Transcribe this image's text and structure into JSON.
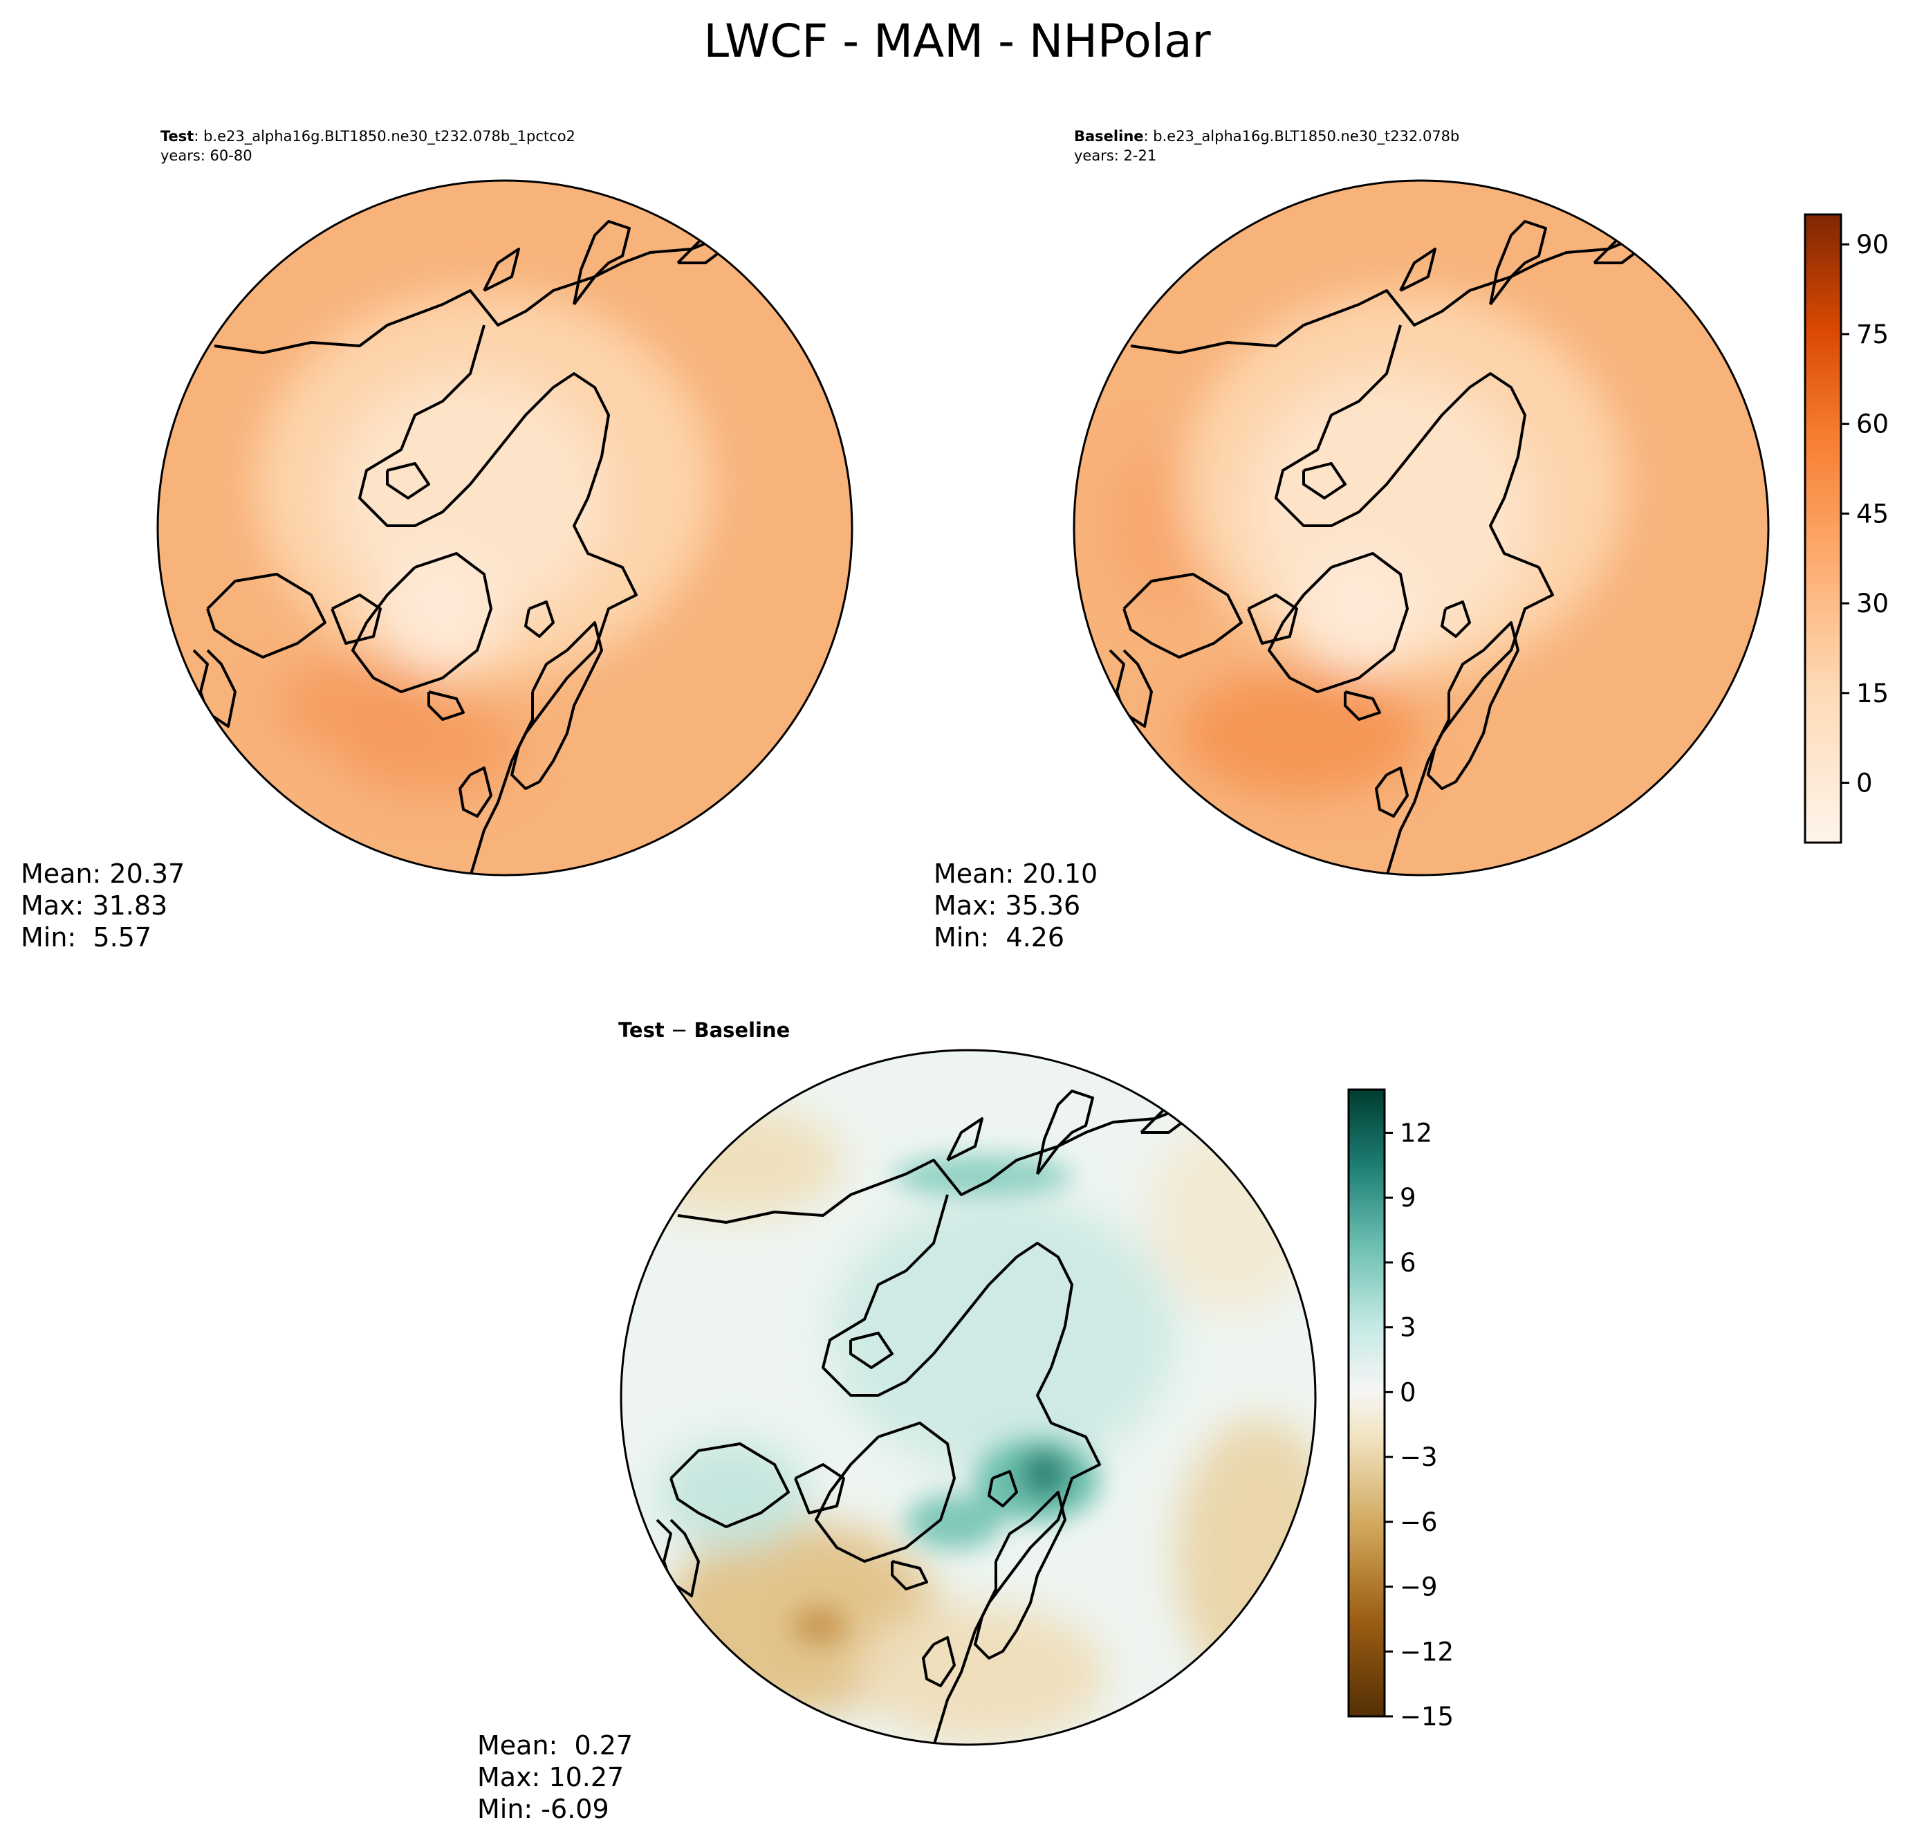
{
  "figure": {
    "title": "LWCF - MAM - NHPolar"
  },
  "panels": {
    "test": {
      "label_bold": "Test",
      "label_rest": ": b.e23_alpha16g.BLT1850.ne30_t232.078b_1pctco2",
      "years": "years: 60-80",
      "stats": [
        "Mean: 20.37",
        "Max: 31.83",
        "Min:  5.57"
      ]
    },
    "baseline": {
      "label_bold": "Baseline",
      "label_rest": ": b.e23_alpha16g.BLT1850.ne30_t232.078b",
      "years": "years: 2-21",
      "stats": [
        "Mean: 20.10",
        "Max: 35.36",
        "Min:  4.26"
      ]
    },
    "diff": {
      "label_bold": "Test",
      "label_sep": " − ",
      "label_bold2": "Baseline",
      "stats": [
        "Mean:  0.27",
        "Max: 10.27",
        "Min: -6.09"
      ]
    }
  },
  "colors": {
    "map_base": "#f8b37b",
    "map_inner": "#fdd9b5",
    "map_pole": "#fee7d2",
    "map_warm": "#f59a5c",
    "diff_base": "#e9f4f1",
    "diff_brown": "#e8d1a2",
    "diff_brown_dark": "#c99a55",
    "diff_teal": "#a7dbd0",
    "diff_teal_dark": "#2a8474"
  },
  "chart_data": [
    {
      "type": "heatmap",
      "title": "Test : b.e23_alpha16g.BLT1850.ne30_t232.078b_1pctco2",
      "projection": "north polar stereographic",
      "stats": {
        "mean": 20.37,
        "max": 31.83,
        "min": 5.57
      },
      "colormap": "Oranges"
    },
    {
      "type": "heatmap",
      "title": "Baseline : b.e23_alpha16g.BLT1850.ne30_t232.078b",
      "projection": "north polar stereographic",
      "stats": {
        "mean": 20.1,
        "max": 35.36,
        "min": 4.26
      },
      "colormap": "Oranges",
      "colorbar": {
        "range": [
          -10,
          95
        ],
        "ticks": [
          0,
          15,
          30,
          45,
          60,
          75,
          90
        ],
        "tick_labels": [
          "0",
          "15",
          "30",
          "45",
          "60",
          "75",
          "90"
        ]
      }
    },
    {
      "type": "heatmap",
      "title": "Test − Baseline",
      "projection": "north polar stereographic",
      "stats": {
        "mean": 0.27,
        "max": 10.27,
        "min": -6.09
      },
      "colormap": "BrBG",
      "colorbar": {
        "range": [
          -15,
          14
        ],
        "ticks": [
          -15,
          -12,
          -9,
          -6,
          -3,
          0,
          3,
          6,
          9,
          12
        ],
        "tick_labels": [
          "−15",
          "−12",
          "−9",
          "−6",
          "−3",
          "0",
          "3",
          "6",
          "9",
          "12"
        ]
      }
    }
  ]
}
